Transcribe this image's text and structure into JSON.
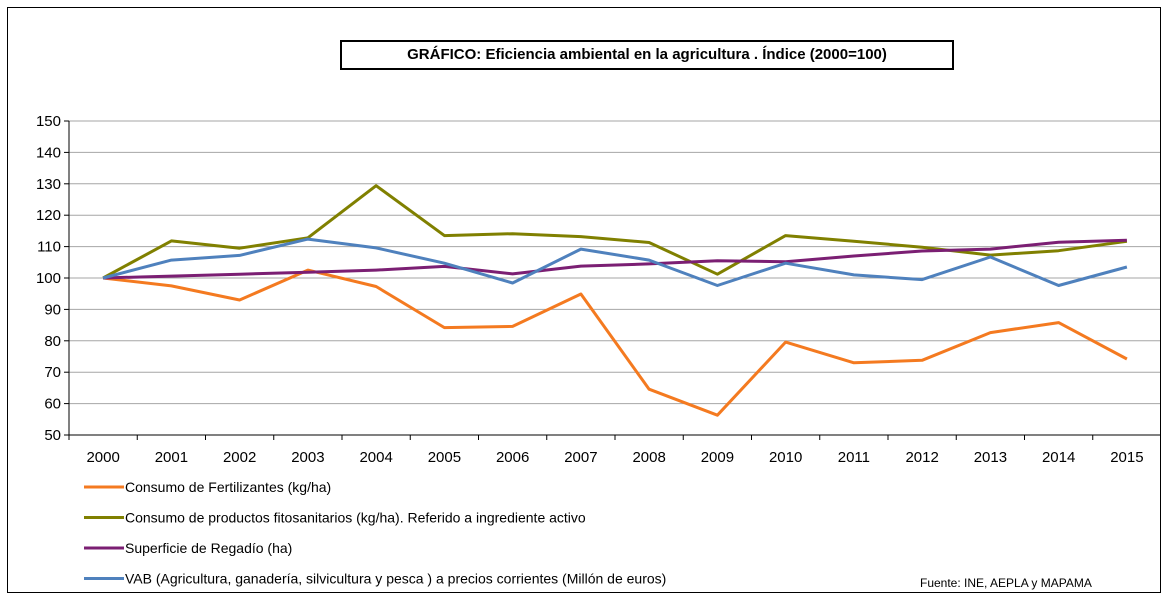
{
  "chart_data": {
    "type": "line",
    "title": "GRÁFICO: Eficiencia ambiental en la agricultura .  Índice (2000=100)",
    "source": "Fuente: INE, AEPLA y MAPAMA",
    "categories": [
      "2000",
      "2001",
      "2002",
      "2003",
      "2004",
      "2005",
      "2006",
      "2007",
      "2008",
      "2009",
      "2010",
      "2011",
      "2012",
      "2013",
      "2014",
      "2015"
    ],
    "ylim": [
      50,
      150
    ],
    "yticks": [
      50,
      60,
      70,
      80,
      90,
      100,
      110,
      120,
      130,
      140,
      150
    ],
    "grid": true,
    "legend_position": "bottom",
    "series": [
      {
        "name": "Consumo de Fertilizantes (kg/ha)",
        "color": "#f47a20",
        "values": [
          100,
          97.5,
          93,
          102.5,
          97.3,
          84.2,
          84.6,
          94.9,
          64.6,
          56.3,
          79.6,
          73.0,
          73.8,
          82.6,
          85.8,
          74.2
        ]
      },
      {
        "name": "Consumo de productos fitosanitarios (kg/ha). Referido a ingrediente activo",
        "color": "#808000",
        "values": [
          100,
          111.8,
          109.5,
          112.8,
          129.4,
          113.5,
          114.1,
          113.2,
          111.3,
          101.2,
          113.5,
          111.7,
          109.8,
          107.3,
          108.7,
          111.7
        ]
      },
      {
        "name": "Superficie de Regadío (ha)",
        "color": "#7b1f73",
        "values": [
          100,
          100.6,
          101.2,
          101.8,
          102.5,
          103.7,
          101.3,
          103.8,
          104.5,
          105.5,
          105.2,
          107.0,
          108.6,
          109.2,
          111.4,
          112.0
        ]
      },
      {
        "name": "VAB (Agricultura, ganadería, silvicultura y pesca ) a precios corrientes (Millón de euros)",
        "color": "#4f81bd",
        "values": [
          100,
          105.7,
          107.2,
          112.4,
          109.6,
          104.7,
          98.4,
          109.2,
          105.7,
          97.6,
          104.7,
          101.0,
          99.5,
          106.7,
          97.6,
          103.5
        ]
      }
    ]
  }
}
